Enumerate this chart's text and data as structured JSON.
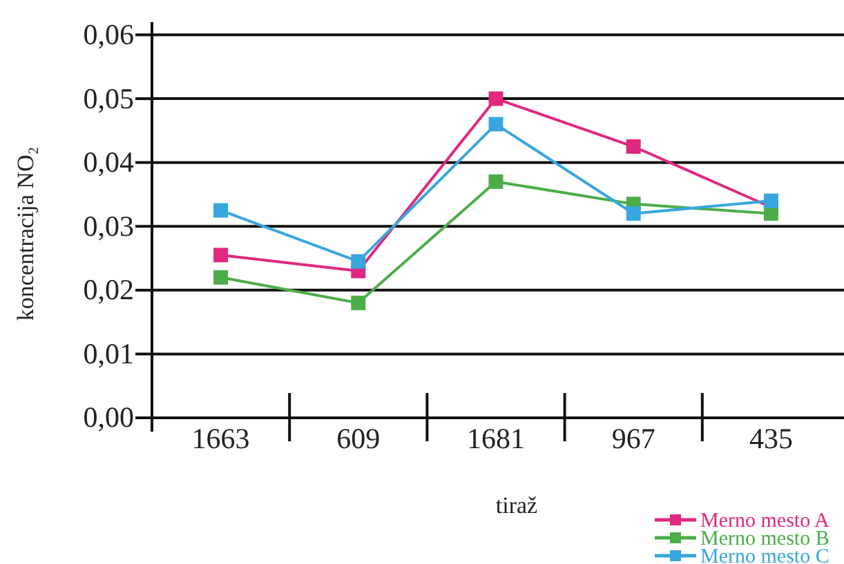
{
  "chart_data": {
    "type": "line",
    "xlabel": "tiraž",
    "ylabel": "koncentracija NO₂",
    "categories": [
      "1663",
      "609",
      "1681",
      "967",
      "435"
    ],
    "series": [
      {
        "name": "Merno mesto A",
        "color": "#e0287e",
        "values": [
          0.0255,
          0.023,
          0.05,
          0.0425,
          0.033
        ]
      },
      {
        "name": "Merno mesto B",
        "color": "#4cad48",
        "values": [
          0.022,
          0.018,
          0.037,
          0.0335,
          0.032
        ]
      },
      {
        "name": "Merno mesto C",
        "color": "#38a6de",
        "values": [
          0.0325,
          0.0245,
          0.046,
          0.032,
          0.034
        ]
      }
    ],
    "ylim": [
      0,
      0.062
    ],
    "yticks": [
      {
        "value": 0,
        "label": "0,00"
      },
      {
        "value": 0.01,
        "label": "0,01"
      },
      {
        "value": 0.02,
        "label": "0,02"
      },
      {
        "value": 0.03,
        "label": "0,03"
      },
      {
        "value": 0.04,
        "label": "0,04"
      },
      {
        "value": 0.05,
        "label": "0,05"
      },
      {
        "value": 0.06,
        "label": "0,06"
      }
    ],
    "grid": "y",
    "legend": "bottom right",
    "marker": "square",
    "line_style": "solid"
  }
}
